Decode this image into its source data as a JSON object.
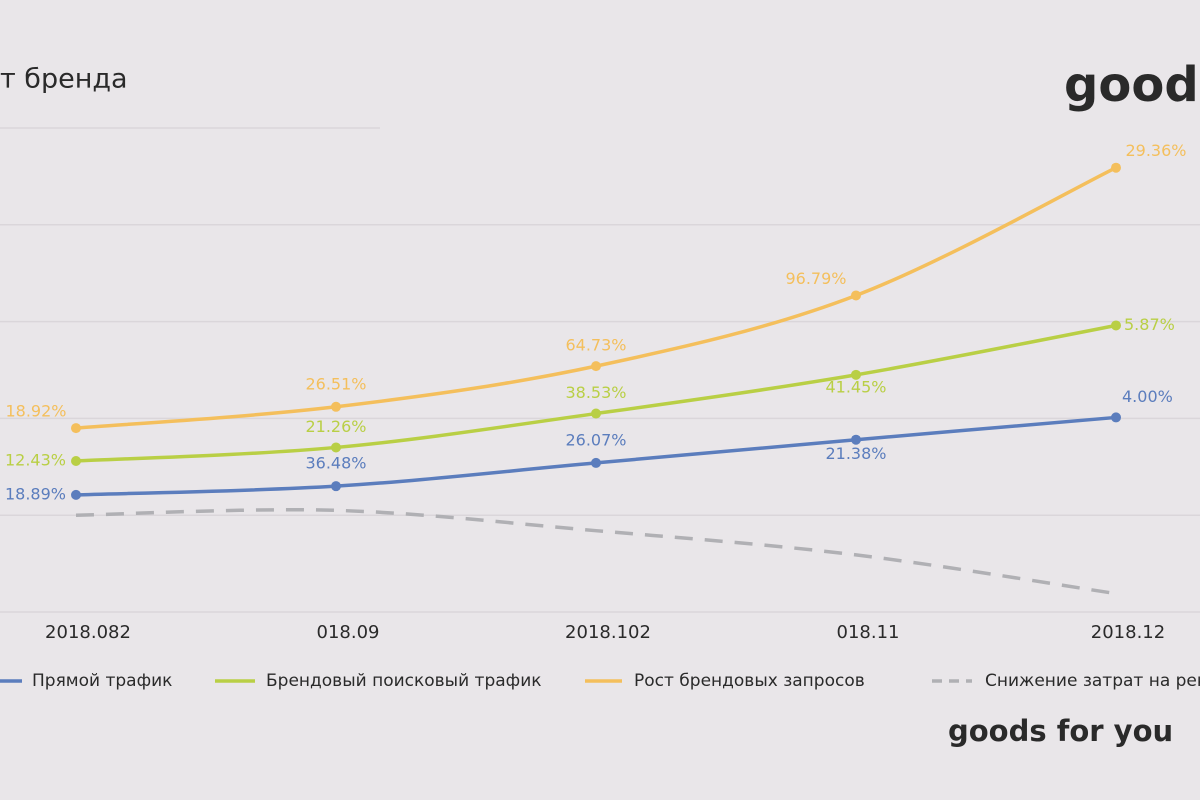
{
  "chart_data": {
    "type": "line",
    "title": "т бренда",
    "logo_top": "good",
    "logo_bottom": "goods for you",
    "categories": [
      "2018.082",
      "018.09",
      "2018.102",
      "018.11",
      "2018.12"
    ],
    "ylim": [
      0,
      5
    ],
    "ygrid": [
      0,
      1,
      2,
      3,
      4,
      5
    ],
    "grid": true,
    "legend": "bottom",
    "series": [
      {
        "name": "Прямой трафик",
        "color": "#5b7dbd",
        "values": [
          1.21,
          1.3,
          1.54,
          1.78,
          2.01
        ],
        "point_labels": [
          "18.89%",
          "36.48%",
          "26.07%",
          "21.38%",
          "4.00%"
        ]
      },
      {
        "name": "Брендовый поисковый трафик",
        "color": "#b9cf45",
        "values": [
          1.56,
          1.7,
          2.05,
          2.45,
          2.96
        ],
        "point_labels": [
          "12.43%",
          "21.26%",
          "38.53%",
          "41.45%",
          "5.87%"
        ]
      },
      {
        "name": "Рост брендовых запросов",
        "color": "#f4bf5c",
        "values": [
          1.9,
          2.12,
          2.54,
          3.27,
          4.59
        ],
        "point_labels": [
          "18.92%",
          "26.51%",
          "64.73%",
          "96.79%",
          "29.36%"
        ]
      },
      {
        "name": "Снижение затрат на рек",
        "color": "#b0b0b4",
        "dashed": true,
        "values": [
          1.0,
          1.05,
          0.84,
          0.59,
          0.19
        ]
      }
    ]
  }
}
